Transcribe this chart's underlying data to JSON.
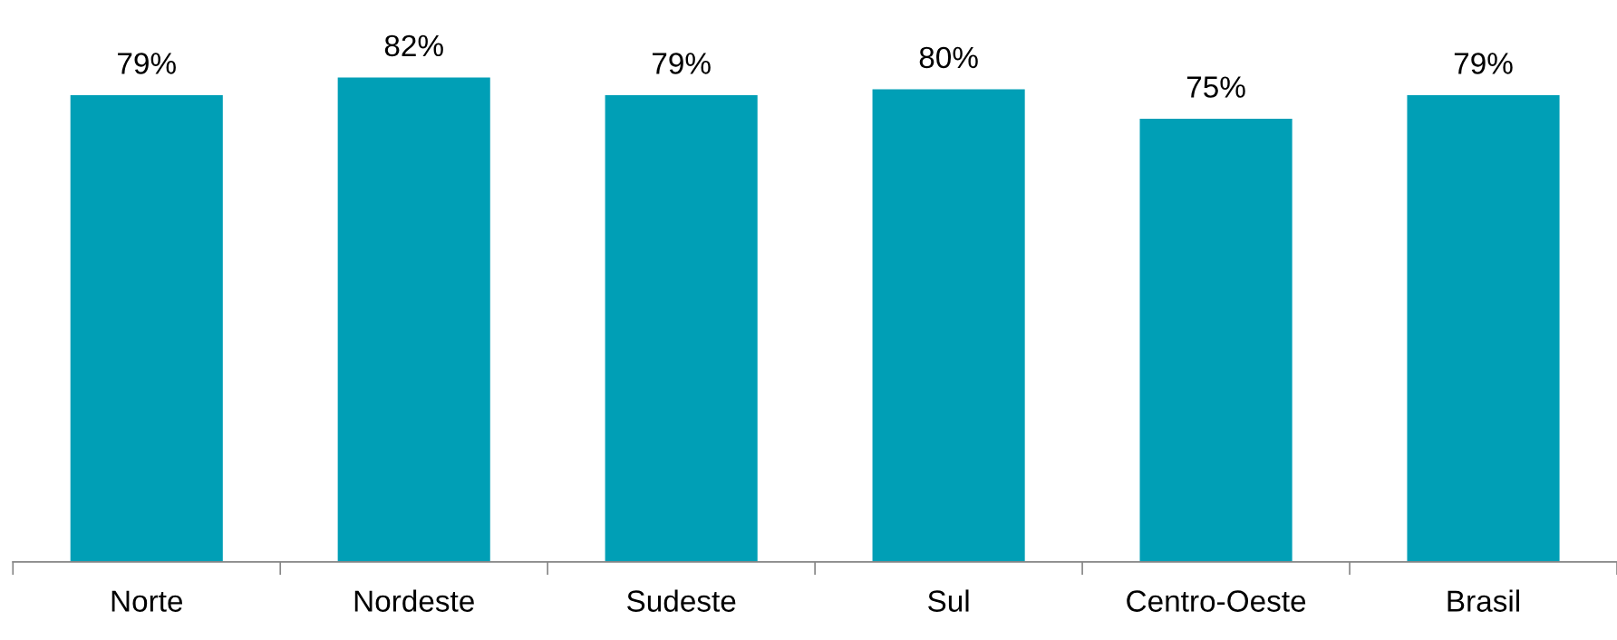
{
  "chart_data": {
    "type": "bar",
    "categories": [
      "Norte",
      "Nordeste",
      "Sudeste",
      "Sul",
      "Centro-Oeste",
      "Brasil"
    ],
    "values": [
      79,
      82,
      79,
      80,
      75,
      79
    ],
    "value_labels": [
      "79%",
      "82%",
      "79%",
      "80%",
      "75%",
      "79%"
    ],
    "color": "#009fb6",
    "grid": false,
    "legend": false
  }
}
